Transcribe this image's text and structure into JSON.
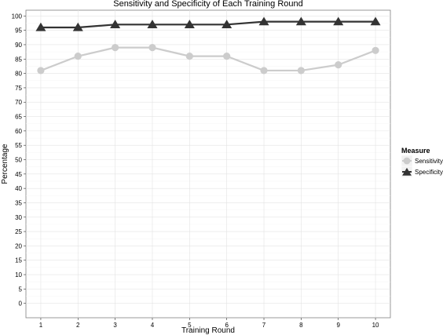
{
  "chart_data": {
    "type": "line",
    "title": "Sensitivity and Specificity of Each Training Round",
    "xlabel": "Training Round",
    "ylabel": "Percentage",
    "x": [
      1,
      2,
      3,
      4,
      5,
      6,
      7,
      8,
      9,
      10
    ],
    "ylim": [
      -5,
      102
    ],
    "y_ticks": [
      0,
      5,
      10,
      15,
      20,
      25,
      30,
      35,
      40,
      45,
      50,
      55,
      60,
      65,
      70,
      75,
      80,
      85,
      90,
      95,
      100
    ],
    "grid": true,
    "legend": {
      "title": "Measure",
      "placement": "right"
    },
    "series": [
      {
        "name": "Sensitivity",
        "values": [
          81,
          86,
          89,
          89,
          86,
          86,
          81,
          81,
          83,
          88
        ],
        "color": "#cccccc",
        "marker": "circle"
      },
      {
        "name": "Specificity",
        "values": [
          96,
          96,
          97,
          97,
          97,
          97,
          98,
          98,
          98,
          98
        ],
        "color": "#333333",
        "marker": "triangle"
      }
    ]
  }
}
